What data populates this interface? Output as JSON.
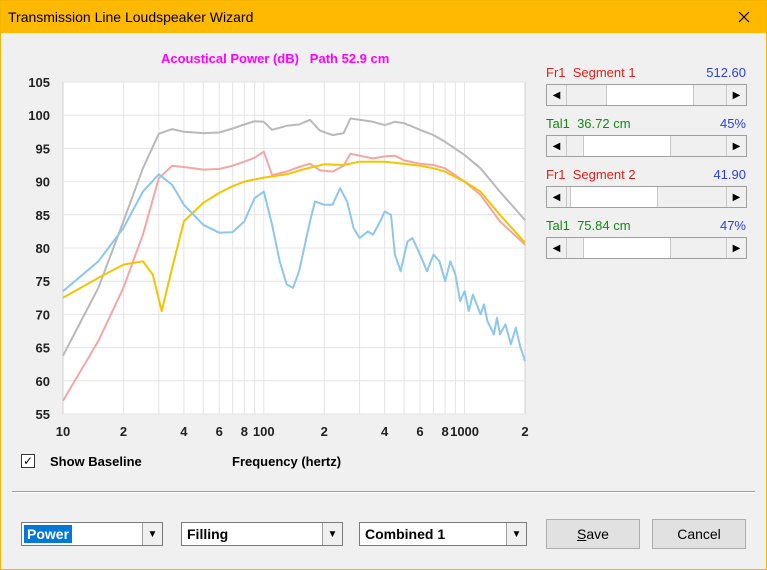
{
  "window": {
    "title": "Transmission Line Loudspeaker Wizard"
  },
  "chart_title": "Acoustical Power (dB)   Path 52.9 cm",
  "controls": [
    {
      "label": "Fr1  Segment 1",
      "label_color": "#e0201e",
      "value": "512.60",
      "fraction": 0.55
    },
    {
      "label": "Tal1  36.72 cm",
      "label_color": "#128a12",
      "value": "45%",
      "fraction": 0.23
    },
    {
      "label": "Fr1  Segment 2",
      "label_color": "#e0201e",
      "value": "41.90",
      "fraction": 0.04
    },
    {
      "label": "Tal1  75.84 cm",
      "label_color": "#128a12",
      "value": "47%",
      "fraction": 0.23
    }
  ],
  "show_baseline": {
    "label": "Show Baseline",
    "checked": true,
    "check_glyph": "✓"
  },
  "x_axis_title": "Frequency (hertz)",
  "combos": [
    {
      "value": "Power",
      "selected": true
    },
    {
      "value": "Filling",
      "selected": false
    },
    {
      "value": "Combined 1",
      "selected": false
    }
  ],
  "buttons": {
    "save": "Save",
    "cancel": "Cancel"
  },
  "icons": {
    "close": "close-icon",
    "left_arrow": "left-arrow-icon",
    "right_arrow": "right-arrow-icon",
    "dropdown": "chevron-down-icon"
  },
  "chart_data": {
    "type": "line",
    "title": "Acoustical Power (dB)   Path 52.9 cm",
    "xlabel": "Frequency (hertz)",
    "ylabel": "",
    "x_scale": "log",
    "xlim": [
      10,
      2000
    ],
    "ylim": [
      55,
      105
    ],
    "grid": true,
    "x_tick_labels": [
      {
        "x": 10,
        "label": "10"
      },
      {
        "x": 20,
        "label": "2"
      },
      {
        "x": 40,
        "label": "4"
      },
      {
        "x": 60,
        "label": "6"
      },
      {
        "x": 80,
        "label": "8"
      },
      {
        "x": 100,
        "label": "100"
      },
      {
        "x": 200,
        "label": "2"
      },
      {
        "x": 400,
        "label": "4"
      },
      {
        "x": 600,
        "label": "6"
      },
      {
        "x": 800,
        "label": "8"
      },
      {
        "x": 1000,
        "label": "1000"
      },
      {
        "x": 2000,
        "label": "2"
      }
    ],
    "y_ticks": [
      55,
      60,
      65,
      70,
      75,
      80,
      85,
      90,
      95,
      100,
      105
    ],
    "series": [
      {
        "color": "#b9b9b9",
        "points": [
          [
            10,
            63.8
          ],
          [
            15,
            74
          ],
          [
            20,
            84
          ],
          [
            25,
            92
          ],
          [
            30,
            97.2
          ],
          [
            35,
            97.9
          ],
          [
            40,
            97.5
          ],
          [
            50,
            97.3
          ],
          [
            60,
            97.4
          ],
          [
            70,
            98
          ],
          [
            80,
            98.6
          ],
          [
            90,
            99.1
          ],
          [
            100,
            99
          ],
          [
            110,
            97.8
          ],
          [
            130,
            98.4
          ],
          [
            150,
            98.6
          ],
          [
            170,
            99.3
          ],
          [
            190,
            97.7
          ],
          [
            220,
            97
          ],
          [
            250,
            97.3
          ],
          [
            270,
            99.5
          ],
          [
            300,
            99.3
          ],
          [
            350,
            99
          ],
          [
            400,
            98.5
          ],
          [
            450,
            99
          ],
          [
            500,
            98.8
          ],
          [
            600,
            97.8
          ],
          [
            700,
            97
          ],
          [
            800,
            96
          ],
          [
            1000,
            94
          ],
          [
            1200,
            92
          ],
          [
            1500,
            88.5
          ],
          [
            2000,
            84.2
          ]
        ]
      },
      {
        "color": "#f4a6a6",
        "points": [
          [
            10,
            57
          ],
          [
            15,
            66
          ],
          [
            20,
            74
          ],
          [
            25,
            82
          ],
          [
            30,
            90.5
          ],
          [
            35,
            92.4
          ],
          [
            40,
            92.2
          ],
          [
            50,
            91.8
          ],
          [
            60,
            91.9
          ],
          [
            70,
            92.4
          ],
          [
            80,
            93
          ],
          [
            90,
            93.6
          ],
          [
            100,
            94.5
          ],
          [
            110,
            91
          ],
          [
            130,
            91.5
          ],
          [
            150,
            92.2
          ],
          [
            170,
            92.7
          ],
          [
            190,
            91.7
          ],
          [
            220,
            91.5
          ],
          [
            250,
            92.4
          ],
          [
            270,
            94.2
          ],
          [
            300,
            93.9
          ],
          [
            350,
            93.5
          ],
          [
            400,
            93.8
          ],
          [
            450,
            93.9
          ],
          [
            500,
            93.2
          ],
          [
            600,
            92.7
          ],
          [
            700,
            92.5
          ],
          [
            800,
            92
          ],
          [
            1000,
            90
          ],
          [
            1200,
            88
          ],
          [
            1500,
            84
          ],
          [
            2000,
            80.5
          ]
        ]
      },
      {
        "color": "#f5c400",
        "points": [
          [
            10,
            72.5
          ],
          [
            15,
            75.5
          ],
          [
            20,
            77.5
          ],
          [
            25,
            78
          ],
          [
            28,
            76
          ],
          [
            31,
            70.5
          ],
          [
            35,
            77
          ],
          [
            40,
            84
          ],
          [
            50,
            86.8
          ],
          [
            60,
            88.3
          ],
          [
            70,
            89.3
          ],
          [
            80,
            90
          ],
          [
            100,
            90.6
          ],
          [
            130,
            91.1
          ],
          [
            160,
            91.9
          ],
          [
            200,
            92.6
          ],
          [
            250,
            92.5
          ],
          [
            300,
            93
          ],
          [
            400,
            93
          ],
          [
            500,
            92.7
          ],
          [
            600,
            92.4
          ],
          [
            700,
            92
          ],
          [
            800,
            91.5
          ],
          [
            1000,
            90
          ],
          [
            1200,
            88.5
          ],
          [
            1500,
            85
          ],
          [
            2000,
            80.8
          ]
        ]
      },
      {
        "color": "#8ec6ee",
        "points": [
          [
            10,
            73.5
          ],
          [
            15,
            78
          ],
          [
            20,
            83
          ],
          [
            25,
            88.5
          ],
          [
            30,
            91.1
          ],
          [
            35,
            89.5
          ],
          [
            40,
            86.5
          ],
          [
            50,
            83.5
          ],
          [
            60,
            82.3
          ],
          [
            70,
            82.4
          ],
          [
            80,
            84
          ],
          [
            90,
            87.5
          ],
          [
            100,
            88.5
          ],
          [
            110,
            83.5
          ],
          [
            120,
            78
          ],
          [
            130,
            74.5
          ],
          [
            140,
            74
          ],
          [
            150,
            76.5
          ],
          [
            170,
            84
          ],
          [
            180,
            87
          ],
          [
            200,
            86.5
          ],
          [
            220,
            86.5
          ],
          [
            240,
            89
          ],
          [
            260,
            87
          ],
          [
            280,
            83
          ],
          [
            300,
            81.5
          ],
          [
            330,
            82.5
          ],
          [
            350,
            82
          ],
          [
            380,
            84
          ],
          [
            400,
            85.5
          ],
          [
            430,
            85
          ],
          [
            450,
            79
          ],
          [
            480,
            76.5
          ],
          [
            520,
            81
          ],
          [
            550,
            81.5
          ],
          [
            580,
            80
          ],
          [
            620,
            78
          ],
          [
            650,
            76.5
          ],
          [
            700,
            79
          ],
          [
            750,
            78
          ],
          [
            800,
            75
          ],
          [
            850,
            78
          ],
          [
            900,
            76
          ],
          [
            950,
            72
          ],
          [
            1000,
            73.5
          ],
          [
            1050,
            70.5
          ],
          [
            1100,
            73
          ],
          [
            1150,
            71.5
          ],
          [
            1200,
            70
          ],
          [
            1250,
            71.5
          ],
          [
            1300,
            69
          ],
          [
            1400,
            67
          ],
          [
            1450,
            69.5
          ],
          [
            1500,
            67
          ],
          [
            1600,
            68.5
          ],
          [
            1700,
            65.5
          ],
          [
            1800,
            68
          ],
          [
            1900,
            65
          ],
          [
            2000,
            63
          ]
        ]
      }
    ]
  }
}
